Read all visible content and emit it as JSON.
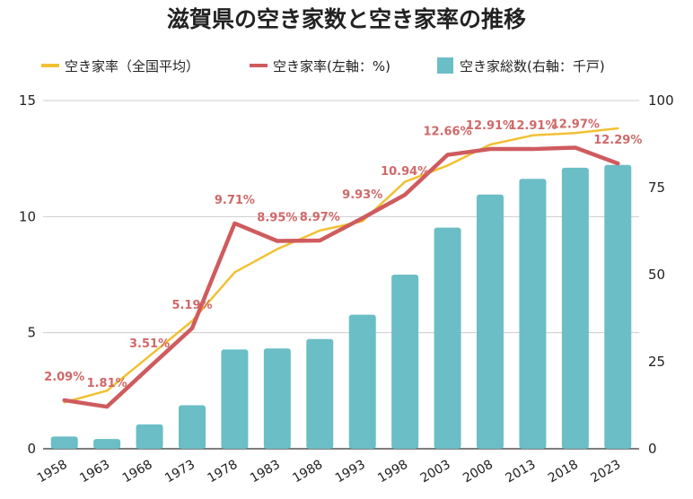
{
  "chart_data": {
    "type": "bar+line",
    "title": "滋賀県の空き家数と空き家率の推移",
    "categories": [
      "1958",
      "1963",
      "1968",
      "1973",
      "1978",
      "1983",
      "1988",
      "1993",
      "1998",
      "2003",
      "2008",
      "2013",
      "2018",
      "2023"
    ],
    "legend": [
      {
        "name": "空き家率（全国平均）",
        "color": "#f2c033",
        "kind": "line"
      },
      {
        "name": "空き家率(左軸：%)",
        "color": "#cf5b5e",
        "kind": "line"
      },
      {
        "name": "空き家総数(右軸：千戸)",
        "color": "#6bbec6",
        "kind": "bar"
      }
    ],
    "legend_position": "top",
    "grid": true,
    "left_axis": {
      "min": 0,
      "max": 15,
      "ticks": [
        "0",
        "5",
        "10",
        "15"
      ]
    },
    "right_axis": {
      "min": 0,
      "max": 100,
      "ticks": [
        "0",
        "25",
        "50",
        "75",
        "100"
      ]
    },
    "series": [
      {
        "name": "空き家総数(右軸：千戸)",
        "axis": "right",
        "color": "#6bbec6",
        "values": [
          3.5,
          2.8,
          7.0,
          12.5,
          28.5,
          28.8,
          31.5,
          38.5,
          50.0,
          63.5,
          73.0,
          77.5,
          80.7,
          81.5
        ]
      },
      {
        "name": "空き家率（全国平均）",
        "axis": "left",
        "color": "#f2c033",
        "values": [
          2.0,
          2.5,
          4.0,
          5.5,
          7.6,
          8.6,
          9.4,
          9.8,
          11.5,
          12.2,
          13.1,
          13.5,
          13.6,
          13.8
        ]
      },
      {
        "name": "空き家率(左軸：%)",
        "axis": "left",
        "color": "#cf5b5e",
        "values": [
          2.09,
          1.81,
          3.51,
          5.19,
          9.71,
          8.95,
          8.97,
          9.93,
          10.94,
          12.66,
          12.91,
          12.91,
          12.97,
          12.29
        ],
        "labels": [
          "2.09%",
          "1.81%",
          "3.51%",
          "5.19%",
          "9.71%",
          "8.95%",
          "8.97%",
          "9.93%",
          "10.94%",
          "12.66%",
          "12.91%",
          "12.91%",
          "12.97%",
          "12.29%"
        ]
      }
    ]
  }
}
